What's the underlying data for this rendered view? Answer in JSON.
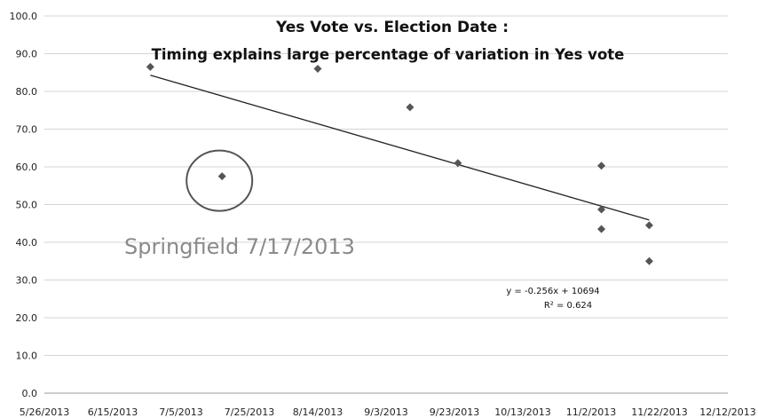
{
  "chart_data": {
    "type": "scatter",
    "title_line1": "Yes Vote vs. Election Date :",
    "title_line2": "Timing explains large percentage of variation in Yes vote",
    "y_ticks": [
      "0.0",
      "10.0",
      "20.0",
      "30.0",
      "40.0",
      "50.0",
      "60.0",
      "70.0",
      "80.0",
      "90.0",
      "100.0"
    ],
    "ylim": [
      0,
      100
    ],
    "x_ticks": [
      "5/26/2013",
      "6/15/2013",
      "7/5/2013",
      "7/25/2013",
      "8/14/2013",
      "9/3/2013",
      "9/23/2013",
      "10/13/2013",
      "11/2/2013",
      "11/22/2013",
      "12/12/2013"
    ],
    "xlim": [
      "2013-05-26",
      "2013-12-12"
    ],
    "grid": true,
    "points": [
      {
        "x": "2013-06-26",
        "y": 86.5
      },
      {
        "x": "2013-07-17",
        "y": 57.5
      },
      {
        "x": "2013-08-14",
        "y": 86.0
      },
      {
        "x": "2013-09-10",
        "y": 75.8
      },
      {
        "x": "2013-09-24",
        "y": 61.0
      },
      {
        "x": "2013-11-05",
        "y": 60.3
      },
      {
        "x": "2013-11-05",
        "y": 48.7
      },
      {
        "x": "2013-11-05",
        "y": 43.5
      },
      {
        "x": "2013-11-19",
        "y": 44.5
      },
      {
        "x": "2013-11-19",
        "y": 35.0
      }
    ],
    "trendline": {
      "from": {
        "x": "2013-06-26",
        "y": 84.3
      },
      "to": {
        "x": "2013-11-19",
        "y": 45.9
      }
    },
    "equation": "y = -0.256x + 10694",
    "r_squared": "R² = 0.624",
    "highlight": {
      "x": "2013-07-17",
      "y": 57.5,
      "label": "Springfield 7/17/2013"
    },
    "colors": {
      "marker": "#555555",
      "line": "#222222",
      "grid": "#d4d4d4",
      "note": "#8a8a8a"
    }
  }
}
